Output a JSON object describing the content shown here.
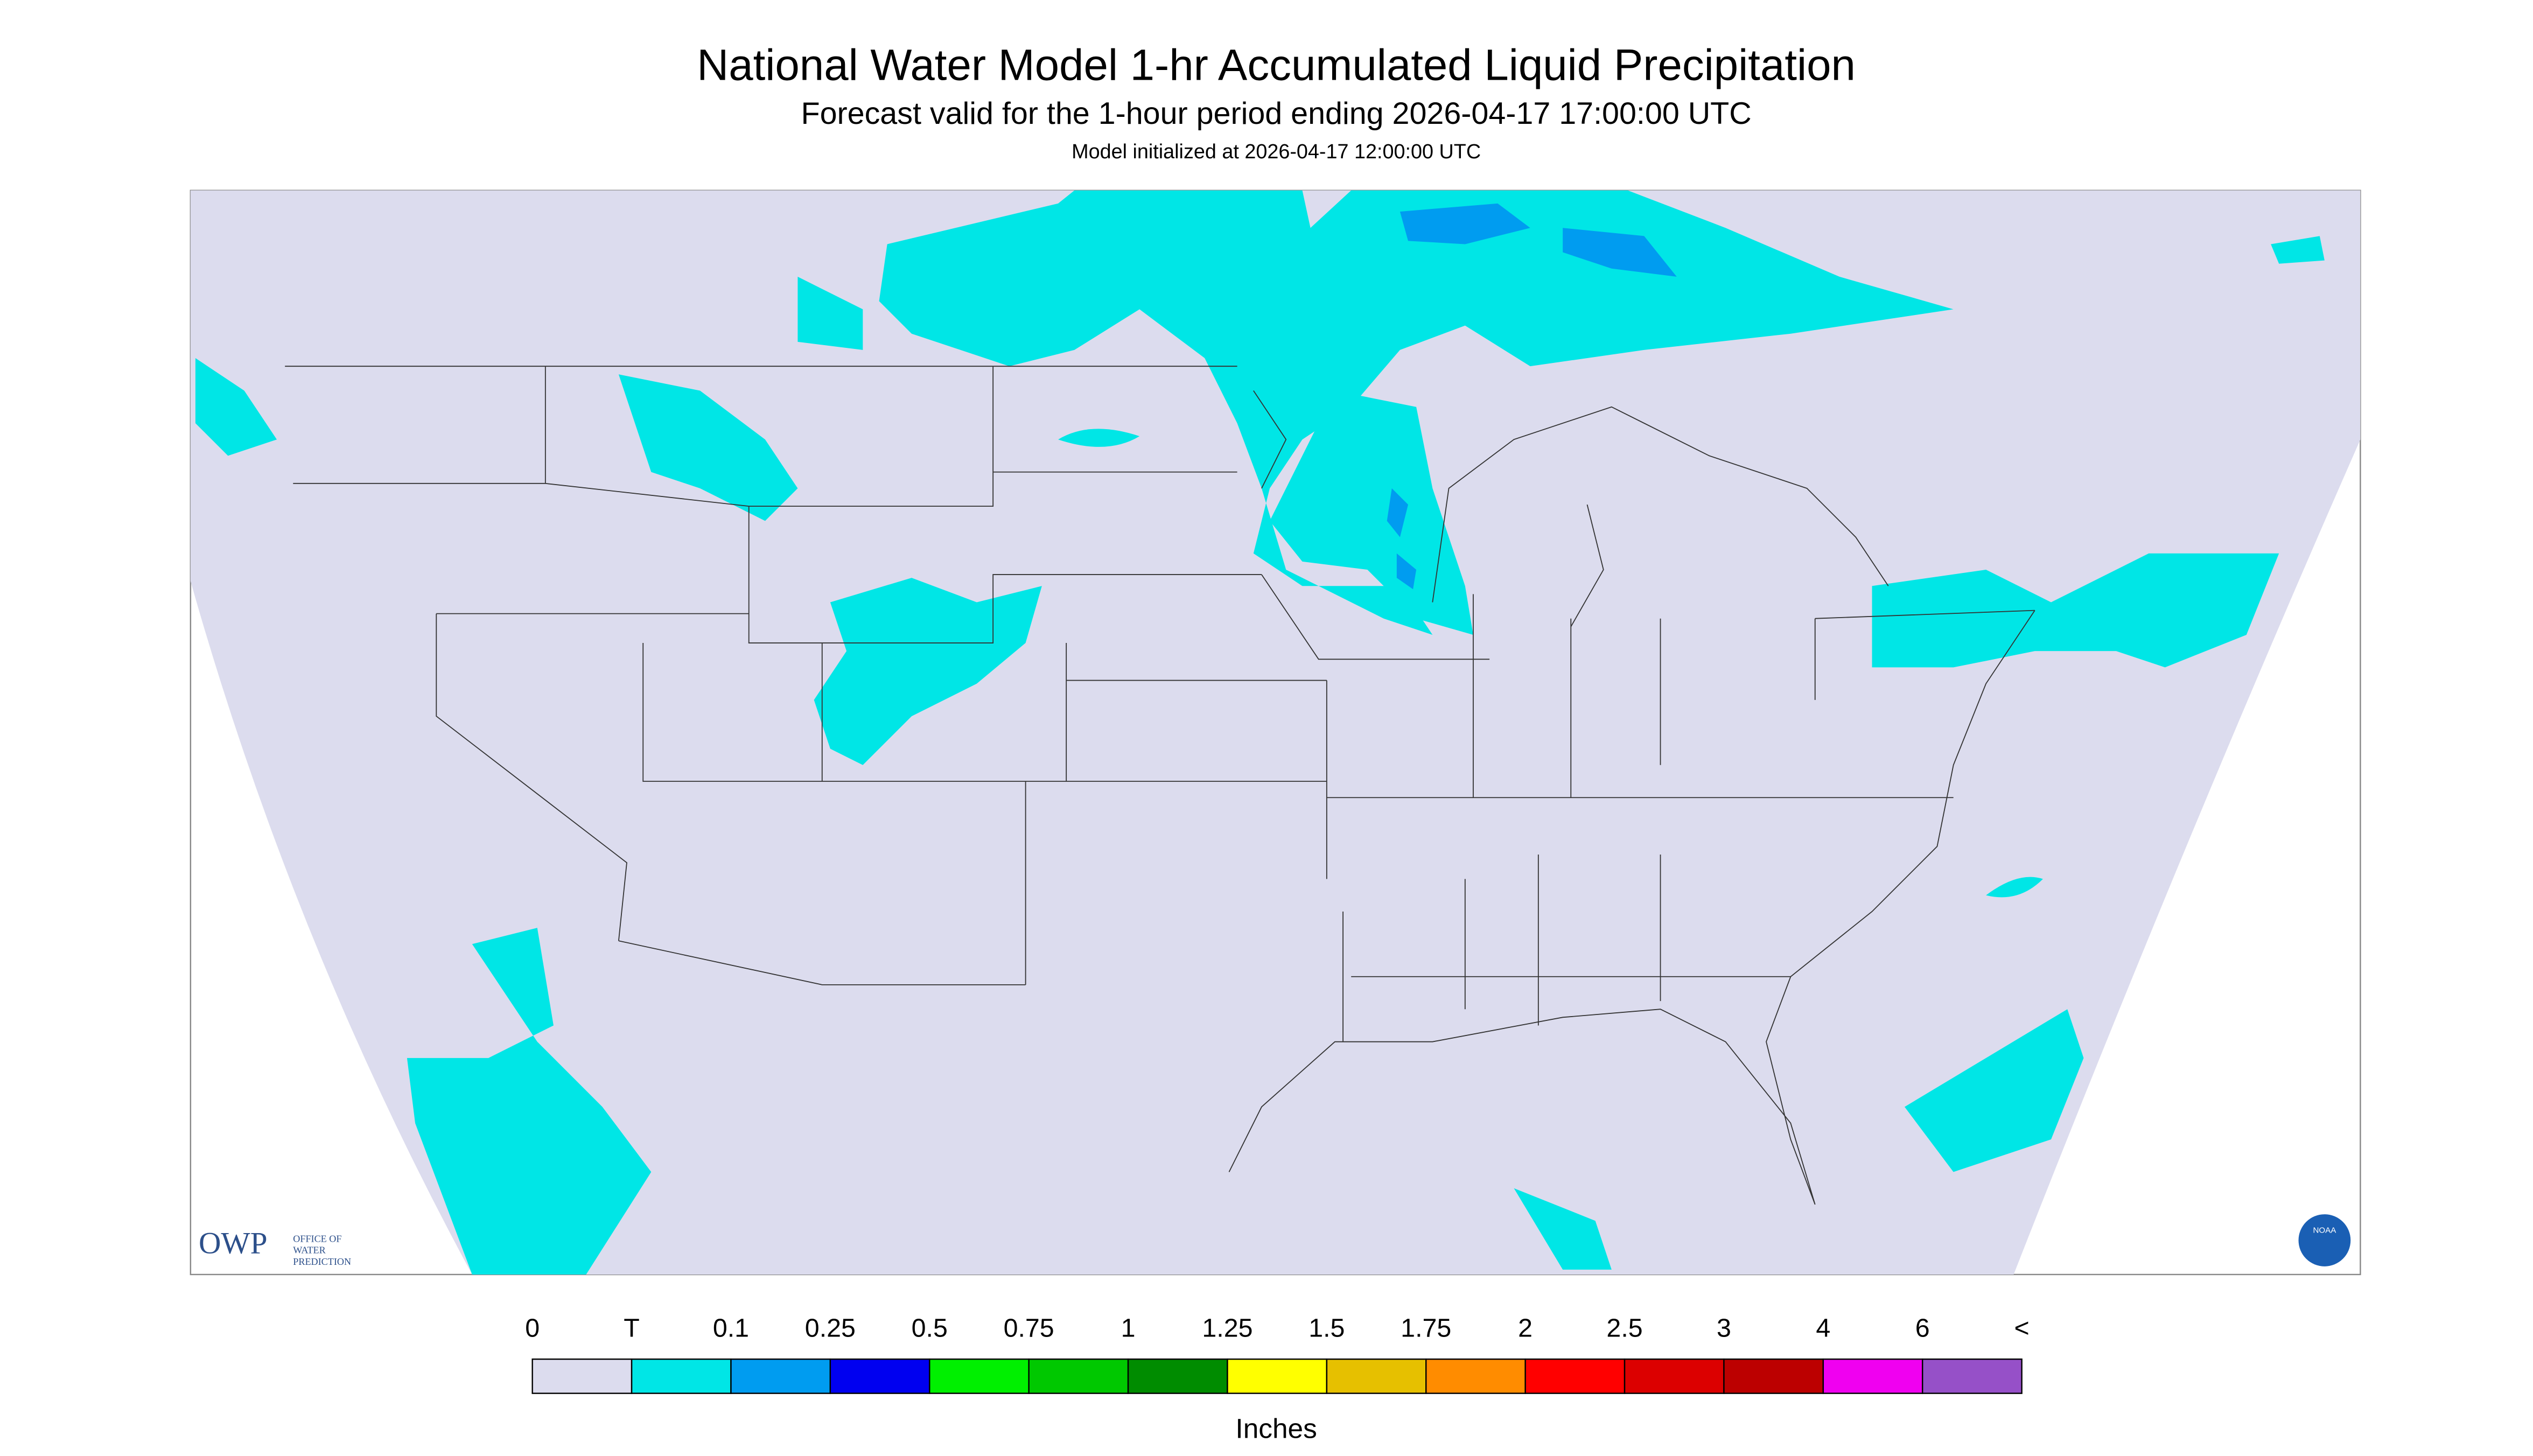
{
  "header": {
    "title": "National Water Model 1-hr Accumulated Liquid Precipitation",
    "subtitle": "Forecast valid for the 1-hour period ending 2026-04-17 17:00:00 UTC",
    "note": "Model initialized at 2026-04-17 12:00:00 UTC"
  },
  "logo": {
    "acronym": "OWP",
    "name": [
      "OFFICE OF",
      "WATER",
      "PREDICTION"
    ],
    "noaa": "NOAA"
  },
  "legend": {
    "ticks": [
      "0",
      "T",
      "0.1",
      "0.25",
      "0.5",
      "0.75",
      "1",
      "1.25",
      "1.5",
      "1.75",
      "2",
      "2.5",
      "3",
      "4",
      "6",
      "<"
    ],
    "colors": [
      "#dcdcee",
      "#00e6e6",
      "#009cf0",
      "#0000f0",
      "#00f000",
      "#00c800",
      "#008c00",
      "#ffff00",
      "#e6c000",
      "#ff8c00",
      "#ff0000",
      "#dc0000",
      "#bc0000",
      "#f000f0",
      "#9650c8"
    ],
    "unit": "Inches"
  }
}
